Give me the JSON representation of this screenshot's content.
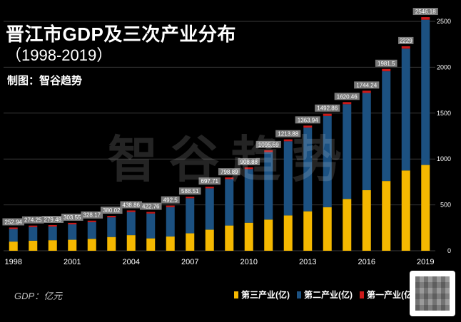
{
  "title": "晋江市GDP及三次产业分布",
  "subtitle": "（1998-2019）",
  "maker": "制图：智谷趋势",
  "watermark": "智谷趋势",
  "unit_note": "GDP：亿元",
  "colors": {
    "tertiary": "#f5b800",
    "secondary": "#1c5181",
    "primary": "#cc1a1a",
    "label_bg": "#7a7a7a",
    "gridline": "#3a3a3a"
  },
  "chart_data": {
    "type": "bar",
    "stacked": true,
    "title": "晋江市GDP及三次产业分布（1998-2019）",
    "categories": [
      "1998",
      "1999",
      "2000",
      "2001",
      "2002",
      "2003",
      "2004",
      "2005",
      "2006",
      "2007",
      "2008",
      "2009",
      "2010",
      "2011",
      "2012",
      "2013",
      "2014",
      "2015",
      "2016",
      "2017",
      "2018",
      "2019"
    ],
    "x_tick_labels": [
      "1998",
      "2001",
      "2004",
      "2007",
      "2010",
      "2013",
      "2016",
      "2019"
    ],
    "y_ticks": [
      0,
      500,
      1000,
      1500,
      2000,
      2500
    ],
    "ylim": [
      0,
      2500
    ],
    "totals": [
      252.94,
      274.25,
      279.48,
      303.55,
      328.17,
      380.02,
      438.86,
      422.76,
      492.5,
      588.51,
      697.71,
      798.89,
      908.88,
      1095.69,
      1213.88,
      1363.94,
      1492.86,
      1620.46,
      1744.24,
      1981.5,
      2229,
      2546.18
    ],
    "total_labels": [
      "252.94",
      "274.25",
      "279.48",
      "303.55",
      "328.17",
      "380.02",
      "438.86",
      "422.76",
      "492.5",
      "588.51",
      "697.71",
      "798.89",
      "908.88",
      "1095.69",
      "1213.88",
      "1363.94",
      "1492.86",
      "1620.46",
      "1744.24",
      "1981.5",
      "2229",
      "2546.18"
    ],
    "series": [
      {
        "name": "第三产业(亿)",
        "key": "tertiary",
        "values": [
          100,
          110,
          115,
          120,
          130,
          150,
          170,
          135,
          155,
          190,
          230,
          275,
          305,
          340,
          385,
          430,
          475,
          565,
          660,
          760,
          875,
          935
        ]
      },
      {
        "name": "第二产业(亿)",
        "key": "secondary",
        "values": [
          138,
          149,
          149,
          168,
          182,
          214,
          252,
          271,
          320,
          382,
          450,
          506,
          585,
          735,
          808,
          912,
          994,
          1032,
          1060,
          1196,
          1328,
          1583
        ]
      },
      {
        "name": "第一产业(亿)",
        "key": "primary",
        "values": [
          14.94,
          15.25,
          15.48,
          15.55,
          16.17,
          16.02,
          16.86,
          16.76,
          17.5,
          16.51,
          17.71,
          17.89,
          18.88,
          20.69,
          20.88,
          21.94,
          23.86,
          23.46,
          24.24,
          25.5,
          26,
          28.18
        ]
      }
    ]
  }
}
